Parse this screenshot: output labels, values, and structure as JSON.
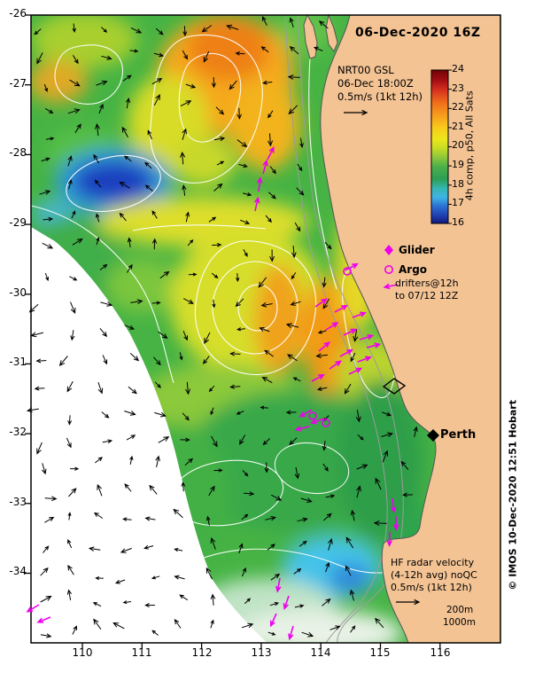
{
  "title": "06-Dec-2020 16Z",
  "info_box": {
    "product": "NRT00 GSL",
    "valid_time": "06-Dec 18:00Z",
    "scale": "0.5m/s (1kt 12h)"
  },
  "colorbar": {
    "ticks": [
      "24",
      "23",
      "22",
      "21",
      "20",
      "19",
      "18",
      "17",
      "16"
    ],
    "label": "4h comp, p50, All Sats",
    "range": [
      16,
      24
    ]
  },
  "legend": {
    "glider": "Glider",
    "argo": "Argo",
    "drifters_line1": "drifters@12h",
    "drifters_line2": "to 07/12 12Z"
  },
  "map": {
    "city": "Perth",
    "depth_200": "200m",
    "depth_1000": "1000m"
  },
  "hf_box": {
    "line1": "HF radar velocity",
    "line2": "(4-12h avg) noQC",
    "line3": "0.5m/s (1kt 12h)"
  },
  "credit": "© IMOS 10-Dec-2020 12:51 Hobart",
  "axes": {
    "x": [
      "110",
      "111",
      "112",
      "113",
      "114",
      "115",
      "116"
    ],
    "y": [
      "-26",
      "-27",
      "-28",
      "-29",
      "-30",
      "-31",
      "-32",
      "-33",
      "-34"
    ],
    "x_range": [
      109.1,
      117.0
    ],
    "y_range": [
      -35.0,
      -26.0
    ]
  },
  "colors": {
    "land": "#f3c394",
    "drifter": "#ee00ee",
    "vector": "#000000",
    "ssh_contour": "#ffffff",
    "bathy_contour": "#9c9c9c"
  }
}
